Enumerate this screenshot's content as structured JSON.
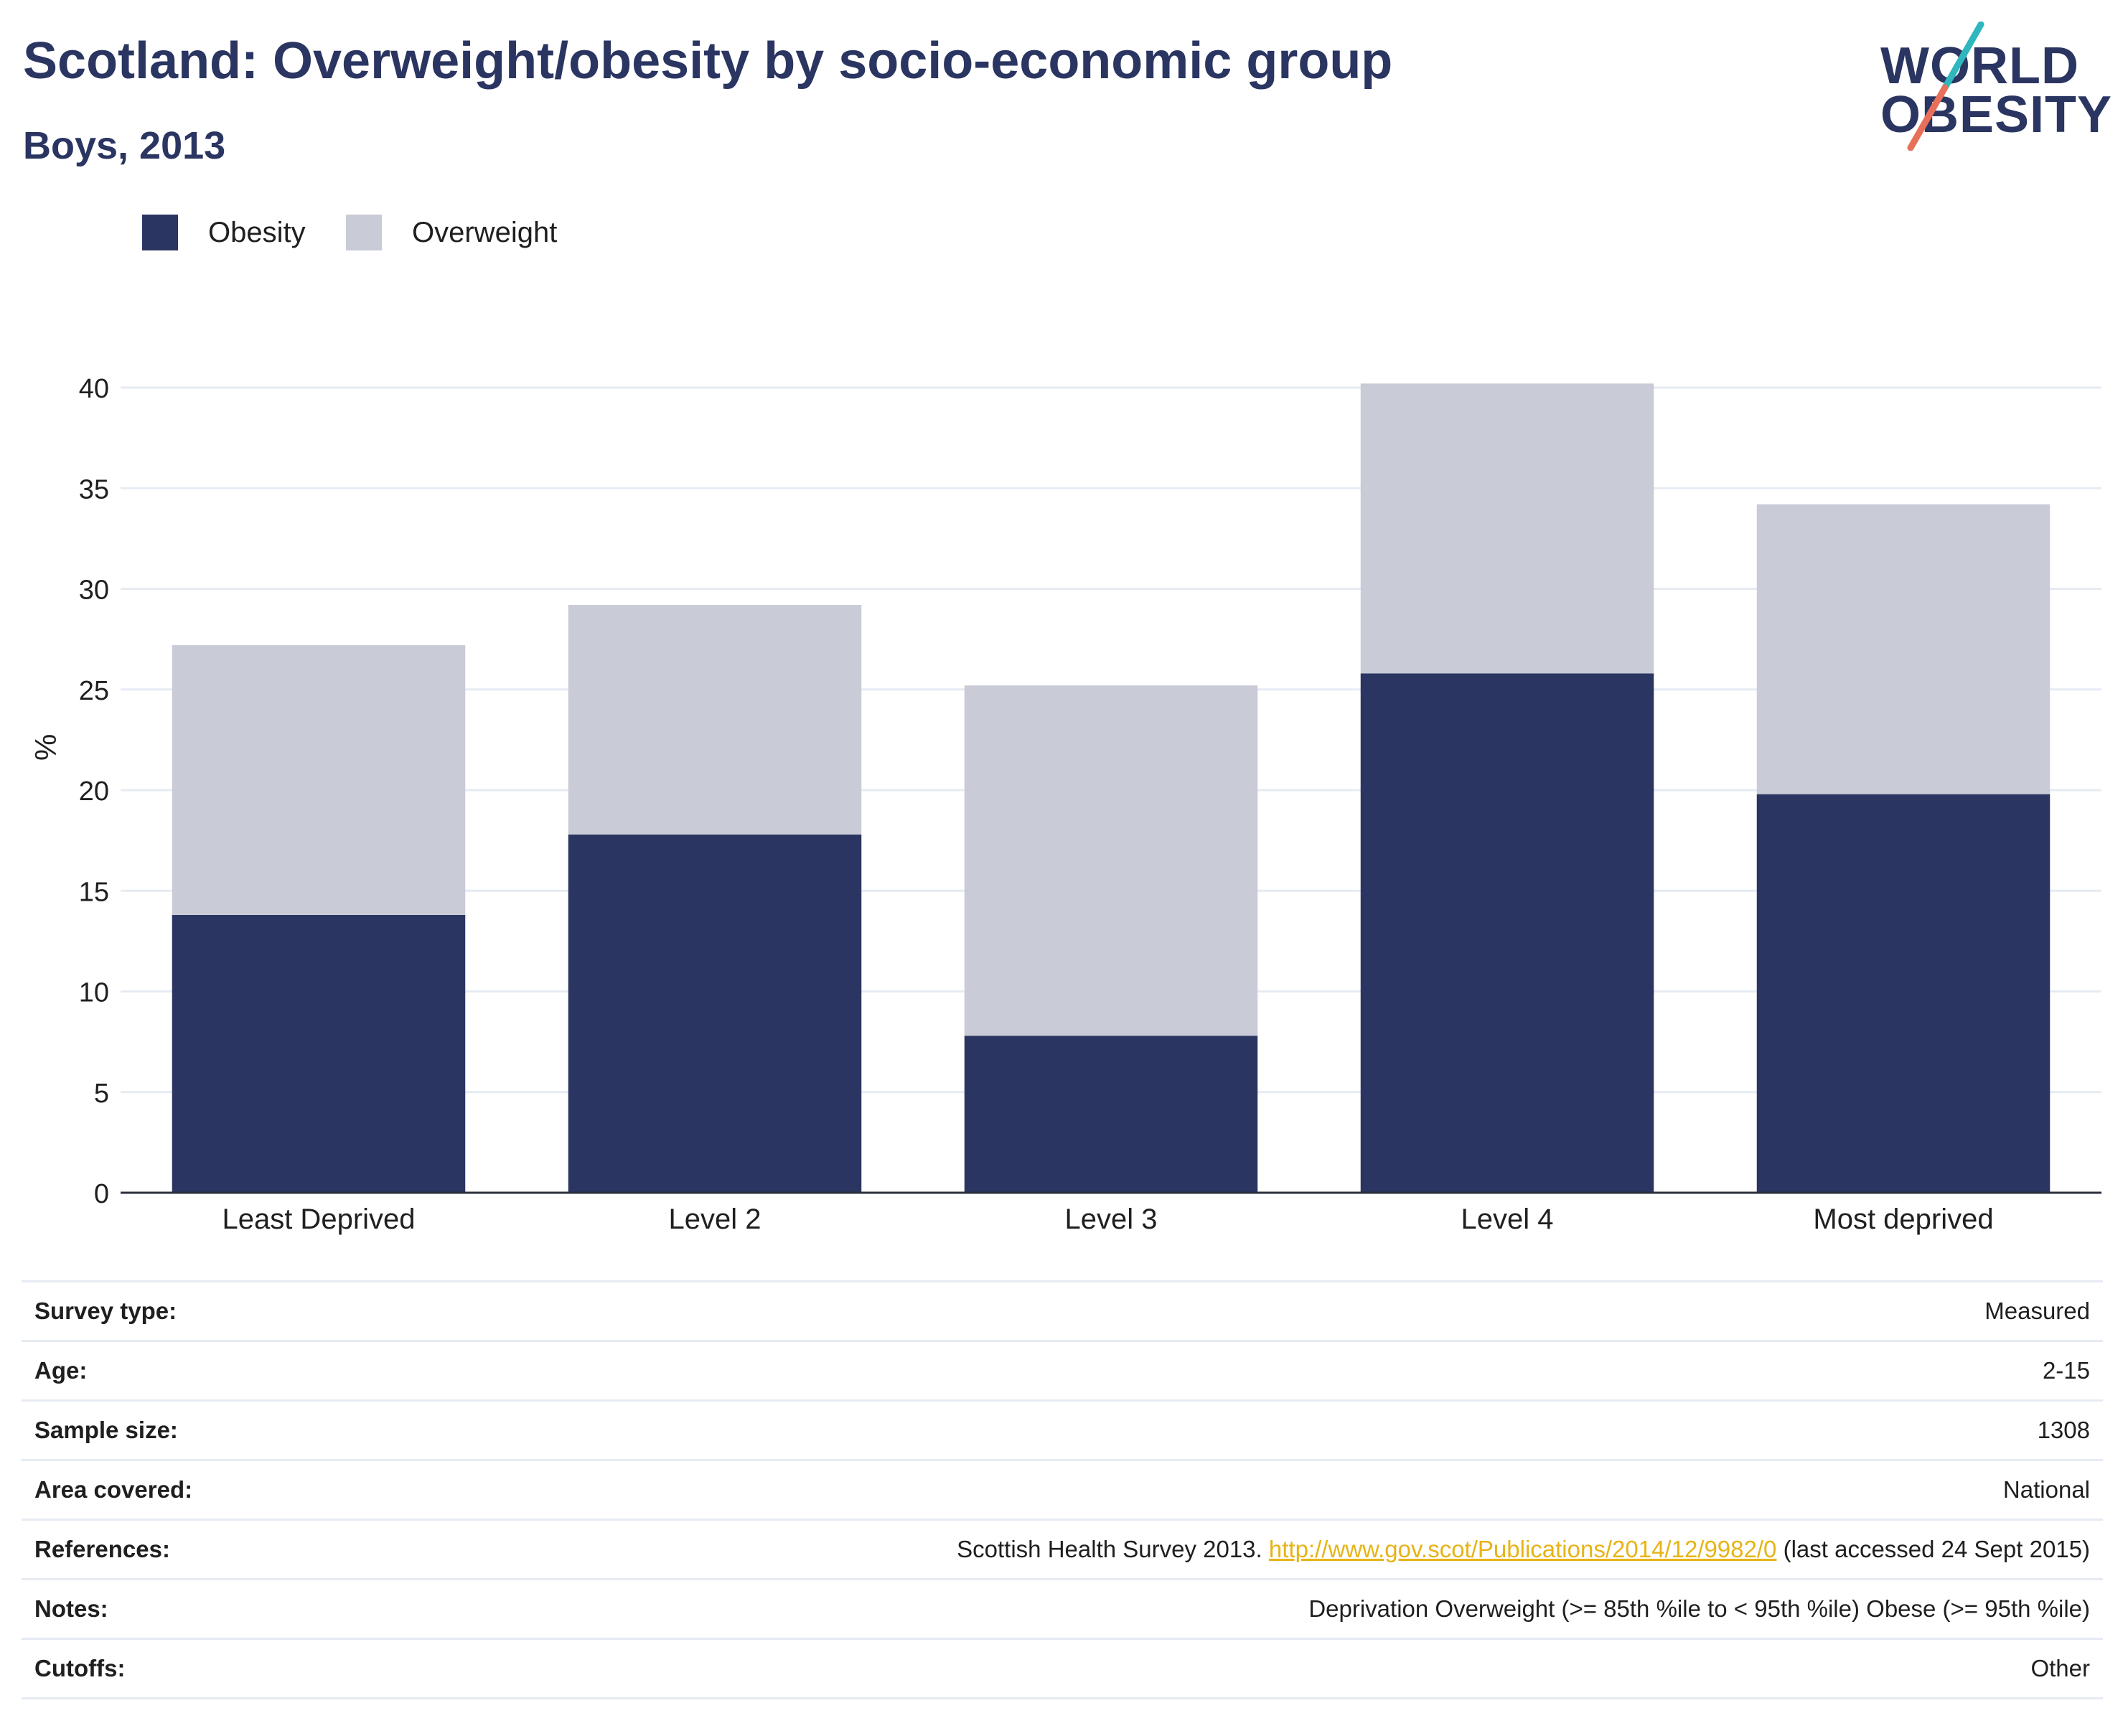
{
  "header": {
    "title": "Scotland: Overweight/obesity by socio-economic group",
    "subtitle": "Boys, 2013"
  },
  "logo": {
    "line1": "WORLD",
    "line2": "OBESITY",
    "slash_colors": [
      "#2fb7bd",
      "#e8705a"
    ]
  },
  "chart_data": {
    "type": "bar",
    "stacked": true,
    "categories": [
      "Least Deprived",
      "Level 2",
      "Level 3",
      "Level 4",
      "Most deprived"
    ],
    "series": [
      {
        "name": "Obesity",
        "color": "#2a3561",
        "values": [
          13.8,
          17.8,
          7.8,
          25.8,
          19.8
        ]
      },
      {
        "name": "Overweight",
        "color": "#c9cbd7",
        "values": [
          13.4,
          11.4,
          17.4,
          14.4,
          14.4
        ]
      }
    ],
    "xlabel": "",
    "ylabel": "%",
    "ylim": [
      0,
      40
    ],
    "yticks": [
      0,
      5,
      10,
      15,
      20,
      25,
      30,
      35,
      40
    ],
    "grid": true,
    "legend_position": "top-left"
  },
  "info": [
    {
      "label": "Survey type:",
      "value": "Measured"
    },
    {
      "label": "Age:",
      "value": "2-15"
    },
    {
      "label": "Sample size:",
      "value": "1308"
    },
    {
      "label": "Area covered:",
      "value": "National"
    },
    {
      "label": "References:",
      "value_prefix": "Scottish Health Survey 2013.",
      "link": "http://www.gov.scot/Publications/2014/12/9982/0",
      "value_suffix": "(last accessed 24 Sept 2015)"
    },
    {
      "label": "Notes:",
      "value": "Deprivation Overweight (>= 85th %ile to < 95th %ile) Obese (>= 95th %ile)"
    },
    {
      "label": "Cutoffs:",
      "value": "Other"
    }
  ]
}
